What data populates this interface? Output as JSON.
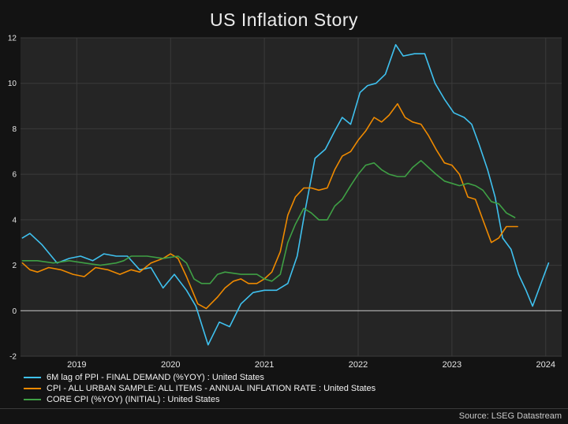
{
  "chart_data": {
    "type": "line",
    "title": "US Inflation Story",
    "xlabel": "",
    "ylabel": "",
    "source": "Source: LSEG Datastream",
    "xlim": [
      2018.4,
      2024.17
    ],
    "ylim": [
      -2,
      12
    ],
    "yticks": [
      -2,
      0,
      2,
      4,
      6,
      8,
      10,
      12
    ],
    "xticks": [
      2019,
      2020,
      2021,
      2022,
      2023,
      2024
    ],
    "xtick_labels": [
      "2019",
      "2020",
      "2021",
      "2022",
      "2023",
      "2024"
    ],
    "grid": true,
    "zero_line": true,
    "legend_position": "bottom-left",
    "colors": {
      "background": "#131313",
      "plot_bg": "#252525",
      "grid": "#3b3b3b",
      "zero_line": "#cccccc",
      "text": "#e6e6e6"
    },
    "series": [
      {
        "name": "6M lag of PPI - FINAL DEMAND (%YOY) : United States",
        "color": "#3fc1ef",
        "points": [
          [
            2018.42,
            3.2
          ],
          [
            2018.5,
            3.4
          ],
          [
            2018.63,
            2.9
          ],
          [
            2018.79,
            2.1
          ],
          [
            2018.92,
            2.3
          ],
          [
            2019.04,
            2.4
          ],
          [
            2019.17,
            2.2
          ],
          [
            2019.29,
            2.5
          ],
          [
            2019.42,
            2.4
          ],
          [
            2019.54,
            2.4
          ],
          [
            2019.67,
            1.8
          ],
          [
            2019.79,
            1.9
          ],
          [
            2019.92,
            1.0
          ],
          [
            2020.04,
            1.6
          ],
          [
            2020.17,
            0.9
          ],
          [
            2020.27,
            0.2
          ],
          [
            2020.4,
            -1.5
          ],
          [
            2020.52,
            -0.5
          ],
          [
            2020.63,
            -0.7
          ],
          [
            2020.75,
            0.3
          ],
          [
            2020.88,
            0.8
          ],
          [
            2021.0,
            0.9
          ],
          [
            2021.13,
            0.9
          ],
          [
            2021.25,
            1.2
          ],
          [
            2021.35,
            2.4
          ],
          [
            2021.43,
            4.3
          ],
          [
            2021.54,
            6.7
          ],
          [
            2021.65,
            7.1
          ],
          [
            2021.75,
            7.9
          ],
          [
            2021.83,
            8.5
          ],
          [
            2021.92,
            8.2
          ],
          [
            2022.02,
            9.6
          ],
          [
            2022.1,
            9.9
          ],
          [
            2022.19,
            10.0
          ],
          [
            2022.29,
            10.4
          ],
          [
            2022.4,
            11.7
          ],
          [
            2022.48,
            11.2
          ],
          [
            2022.6,
            11.3
          ],
          [
            2022.71,
            11.3
          ],
          [
            2022.82,
            10.0
          ],
          [
            2022.92,
            9.3
          ],
          [
            2023.02,
            8.7
          ],
          [
            2023.13,
            8.5
          ],
          [
            2023.21,
            8.2
          ],
          [
            2023.29,
            7.3
          ],
          [
            2023.38,
            6.2
          ],
          [
            2023.46,
            5.0
          ],
          [
            2023.54,
            3.2
          ],
          [
            2023.63,
            2.7
          ],
          [
            2023.71,
            1.6
          ],
          [
            2023.79,
            0.9
          ],
          [
            2023.86,
            0.2
          ],
          [
            2023.94,
            1.1
          ],
          [
            2024.03,
            2.1
          ]
        ]
      },
      {
        "name": "CPI - ALL URBAN SAMPLE: ALL ITEMS - ANNUAL INFLATION RATE : United States",
        "color": "#ef8a00",
        "points": [
          [
            2018.42,
            2.1
          ],
          [
            2018.5,
            1.8
          ],
          [
            2018.58,
            1.7
          ],
          [
            2018.7,
            1.9
          ],
          [
            2018.83,
            1.8
          ],
          [
            2018.96,
            1.6
          ],
          [
            2019.08,
            1.5
          ],
          [
            2019.2,
            1.9
          ],
          [
            2019.33,
            1.8
          ],
          [
            2019.46,
            1.6
          ],
          [
            2019.58,
            1.8
          ],
          [
            2019.67,
            1.7
          ],
          [
            2019.79,
            2.1
          ],
          [
            2019.92,
            2.3
          ],
          [
            2020.0,
            2.5
          ],
          [
            2020.08,
            2.3
          ],
          [
            2020.17,
            1.5
          ],
          [
            2020.29,
            0.3
          ],
          [
            2020.38,
            0.1
          ],
          [
            2020.5,
            0.6
          ],
          [
            2020.58,
            1.0
          ],
          [
            2020.67,
            1.3
          ],
          [
            2020.75,
            1.4
          ],
          [
            2020.83,
            1.2
          ],
          [
            2020.92,
            1.2
          ],
          [
            2021.0,
            1.4
          ],
          [
            2021.08,
            1.7
          ],
          [
            2021.17,
            2.6
          ],
          [
            2021.25,
            4.2
          ],
          [
            2021.33,
            5.0
          ],
          [
            2021.42,
            5.4
          ],
          [
            2021.5,
            5.4
          ],
          [
            2021.58,
            5.3
          ],
          [
            2021.67,
            5.4
          ],
          [
            2021.75,
            6.2
          ],
          [
            2021.83,
            6.8
          ],
          [
            2021.92,
            7.0
          ],
          [
            2022.0,
            7.5
          ],
          [
            2022.08,
            7.9
          ],
          [
            2022.17,
            8.5
          ],
          [
            2022.25,
            8.3
          ],
          [
            2022.33,
            8.6
          ],
          [
            2022.42,
            9.1
          ],
          [
            2022.5,
            8.5
          ],
          [
            2022.58,
            8.3
          ],
          [
            2022.67,
            8.2
          ],
          [
            2022.75,
            7.7
          ],
          [
            2022.83,
            7.1
          ],
          [
            2022.92,
            6.5
          ],
          [
            2023.0,
            6.4
          ],
          [
            2023.08,
            6.0
          ],
          [
            2023.17,
            5.0
          ],
          [
            2023.25,
            4.9
          ],
          [
            2023.33,
            4.0
          ],
          [
            2023.42,
            3.0
          ],
          [
            2023.5,
            3.2
          ],
          [
            2023.58,
            3.7
          ],
          [
            2023.7,
            3.7
          ]
        ]
      },
      {
        "name": "CORE CPI (%YOY) (INITIAL) : United States",
        "color": "#3fa045",
        "points": [
          [
            2018.42,
            2.2
          ],
          [
            2018.58,
            2.2
          ],
          [
            2018.75,
            2.1
          ],
          [
            2018.92,
            2.2
          ],
          [
            2019.08,
            2.1
          ],
          [
            2019.25,
            2.0
          ],
          [
            2019.42,
            2.1
          ],
          [
            2019.5,
            2.2
          ],
          [
            2019.58,
            2.4
          ],
          [
            2019.75,
            2.4
          ],
          [
            2019.92,
            2.3
          ],
          [
            2020.08,
            2.4
          ],
          [
            2020.17,
            2.1
          ],
          [
            2020.25,
            1.4
          ],
          [
            2020.33,
            1.2
          ],
          [
            2020.42,
            1.2
          ],
          [
            2020.5,
            1.6
          ],
          [
            2020.58,
            1.7
          ],
          [
            2020.75,
            1.6
          ],
          [
            2020.92,
            1.6
          ],
          [
            2021.0,
            1.4
          ],
          [
            2021.08,
            1.3
          ],
          [
            2021.17,
            1.6
          ],
          [
            2021.25,
            3.0
          ],
          [
            2021.33,
            3.8
          ],
          [
            2021.42,
            4.5
          ],
          [
            2021.5,
            4.3
          ],
          [
            2021.58,
            4.0
          ],
          [
            2021.67,
            4.0
          ],
          [
            2021.75,
            4.6
          ],
          [
            2021.83,
            4.9
          ],
          [
            2021.92,
            5.5
          ],
          [
            2022.0,
            6.0
          ],
          [
            2022.08,
            6.4
          ],
          [
            2022.17,
            6.5
          ],
          [
            2022.25,
            6.2
          ],
          [
            2022.33,
            6.0
          ],
          [
            2022.42,
            5.9
          ],
          [
            2022.5,
            5.9
          ],
          [
            2022.58,
            6.3
          ],
          [
            2022.67,
            6.6
          ],
          [
            2022.75,
            6.3
          ],
          [
            2022.83,
            6.0
          ],
          [
            2022.92,
            5.7
          ],
          [
            2023.0,
            5.6
          ],
          [
            2023.08,
            5.5
          ],
          [
            2023.17,
            5.6
          ],
          [
            2023.25,
            5.5
          ],
          [
            2023.33,
            5.3
          ],
          [
            2023.42,
            4.8
          ],
          [
            2023.5,
            4.7
          ],
          [
            2023.58,
            4.3
          ],
          [
            2023.67,
            4.1
          ]
        ]
      }
    ]
  }
}
